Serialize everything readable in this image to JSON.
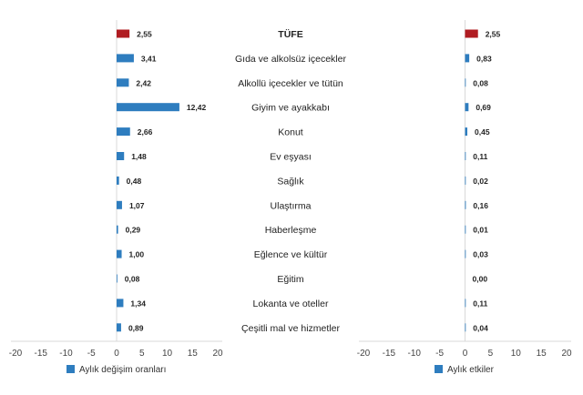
{
  "chart_data": [
    {
      "type": "bar",
      "orientation": "horizontal",
      "legend": "Aylık değişim oranları",
      "legend_position": "bottom",
      "xlim": [
        -20,
        20
      ],
      "xticks": [
        "-20",
        "-15",
        "-10",
        "-5",
        "0",
        "5",
        "10",
        "15",
        "20"
      ],
      "values": [
        2.55,
        3.41,
        2.42,
        12.42,
        2.66,
        1.48,
        0.48,
        1.07,
        0.29,
        1.0,
        0.08,
        1.34,
        0.89
      ],
      "labels": [
        "2,55",
        "3,41",
        "2,42",
        "12,42",
        "2,66",
        "1,48",
        "0,48",
        "1,07",
        "0,29",
        "1,00",
        "0,08",
        "1,34",
        "0,89"
      ]
    },
    {
      "type": "bar",
      "orientation": "horizontal",
      "legend": "Aylık etkiler",
      "legend_position": "bottom",
      "xlim": [
        -20,
        20
      ],
      "xticks": [
        "-20",
        "-15",
        "-10",
        "-5",
        "0",
        "5",
        "10",
        "15",
        "20"
      ],
      "values": [
        2.55,
        0.83,
        0.08,
        0.69,
        0.45,
        0.11,
        0.02,
        0.16,
        0.01,
        0.03,
        0.0,
        0.11,
        0.04
      ],
      "labels": [
        "2,55",
        "0,83",
        "0,08",
        "0,69",
        "0,45",
        "0,11",
        "0,02",
        "0,16",
        "0,01",
        "0,03",
        "0,00",
        "0,11",
        "0,04"
      ]
    }
  ],
  "categories": [
    "TÜFE",
    "Gıda ve alkolsüz içecekler",
    "Alkollü içecekler ve tütün",
    "Giyim ve ayakkabı",
    "Konut",
    "Ev eşyası",
    "Sağlık",
    "Ulaştırma",
    "Haberleşme",
    "Eğlence ve kültür",
    "Eğitim",
    "Lokanta ve oteller",
    "Çeşitli mal ve hizmetler"
  ],
  "colors": {
    "highlight": "#b01c21",
    "bar": "#2e7dbf"
  }
}
